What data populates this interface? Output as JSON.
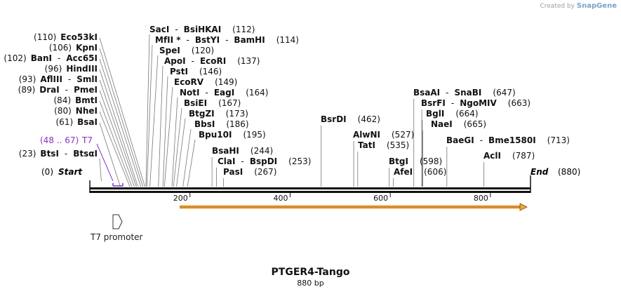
{
  "brand": {
    "created_by": "Created by",
    "logo_text": "SnapGene"
  },
  "map": {
    "title": "PTGER4-Tango",
    "subtitle": "880 bp",
    "length": 880,
    "axis_ticks": [
      "200",
      "400",
      "600",
      "800"
    ],
    "ends": [
      {
        "pos": "(0)",
        "name": "Start"
      },
      {
        "pos": "(880)",
        "name": "End"
      }
    ],
    "features": [
      {
        "label": "T7",
        "pos": "(48 .. 67)",
        "color": "#8b2fc9"
      },
      {
        "label": "T7 promoter",
        "color": "#333333"
      },
      {
        "label": "",
        "color": "#f0a63c"
      }
    ],
    "sites_left": [
      {
        "pos": "(23)",
        "name": "BtsI",
        "sep": "-",
        "name2": "BtsαI"
      },
      {
        "pos": "(61)",
        "name": "BsaI"
      },
      {
        "pos": "(80)",
        "name": "NheI"
      },
      {
        "pos": "(84)",
        "name": "BmtI"
      },
      {
        "pos": "(89)",
        "name": "DraI",
        "sep": "-",
        "name2": "PmeI"
      },
      {
        "pos": "(93)",
        "name": "AflIII",
        "sep": "-",
        "name2": "SmlI"
      },
      {
        "pos": "(96)",
        "name": "HindIII"
      },
      {
        "pos": "(102)",
        "name": "BanI",
        "sep": "-",
        "name2": "Acc65I"
      },
      {
        "pos": "(106)",
        "name": "KpnI"
      },
      {
        "pos": "(110)",
        "name": "Eco53kI"
      }
    ],
    "sites_right": [
      {
        "name": "SacI",
        "sep": "-",
        "name2": "BsiHKAI",
        "pos": "(112)"
      },
      {
        "name": "MfII *",
        "sep": "-",
        "name2": "BstYI",
        "sep2": "-",
        "name3": "BamHI",
        "pos": "(114)"
      },
      {
        "name": "SpeI",
        "pos": "(120)"
      },
      {
        "name": "ApoI",
        "sep": "-",
        "name2": "EcoRI",
        "pos": "(137)"
      },
      {
        "name": "PstI",
        "pos": "(146)"
      },
      {
        "name": "EcoRV",
        "pos": "(149)"
      },
      {
        "name": "NotI",
        "sep": "-",
        "name2": "EagI",
        "pos": "(164)"
      },
      {
        "name": "BsiEI",
        "pos": "(167)"
      },
      {
        "name": "BtgZI",
        "pos": "(173)"
      },
      {
        "name": "BbsI",
        "pos": "(186)"
      },
      {
        "name": "Bpu10I",
        "pos": "(195)"
      },
      {
        "name": "BsaHI",
        "pos": "(244)"
      },
      {
        "name": "ClaI",
        "sep": "-",
        "name2": "BspDI",
        "pos": "(253)"
      },
      {
        "name": "PasI",
        "pos": "(267)"
      },
      {
        "name": "BsrDI",
        "pos": "(462)"
      },
      {
        "name": "AlwNI",
        "pos": "(527)"
      },
      {
        "name": "TatI",
        "pos": "(535)"
      },
      {
        "name": "BtgI",
        "pos": "(598)"
      },
      {
        "name": "AfeI",
        "pos": "(606)"
      },
      {
        "name": "BsaAI",
        "sep": "-",
        "name2": "SnaBI",
        "pos": "(647)"
      },
      {
        "name": "BsrFI",
        "sep": "-",
        "name2": "NgoMIV",
        "pos": "(663)"
      },
      {
        "name": "BglI",
        "pos": "(664)"
      },
      {
        "name": "NaeI",
        "pos": "(665)"
      },
      {
        "name": "BaeGI",
        "sep": "-",
        "name2": "Bme1580I",
        "pos": "(713)"
      },
      {
        "name": "AclI",
        "pos": "(787)"
      }
    ]
  }
}
